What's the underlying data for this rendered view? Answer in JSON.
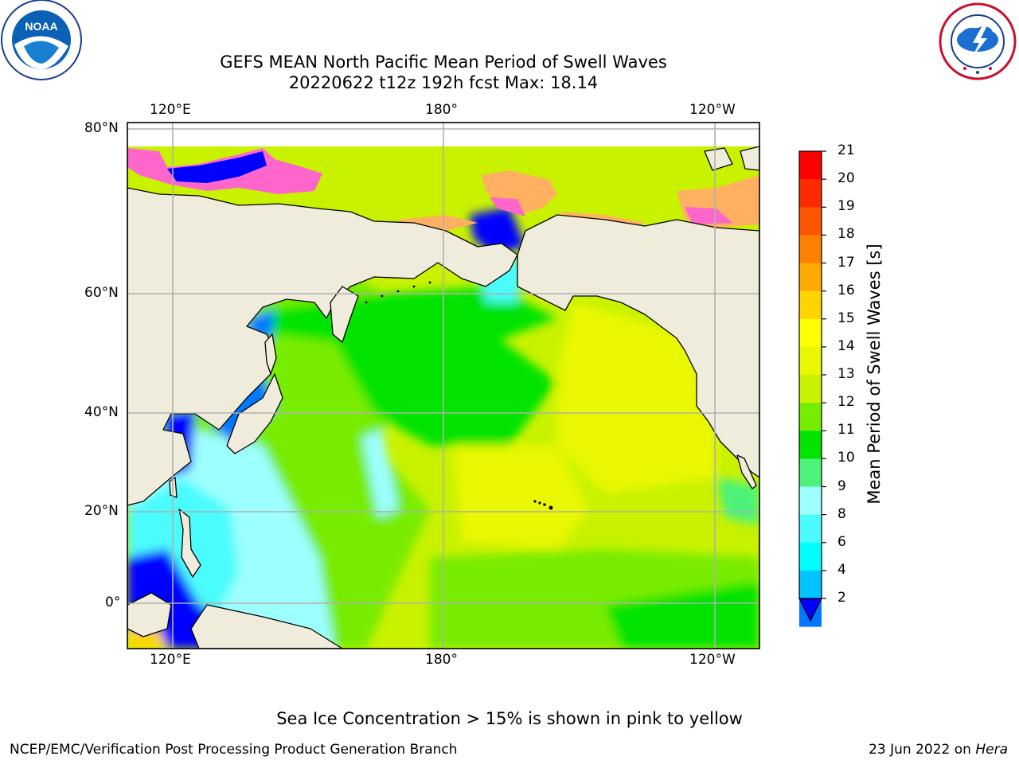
{
  "title": {
    "line1": "GEFS MEAN North Pacific Mean Period of Swell Waves",
    "line2": "20220622 t12z 192h fcst   Max: 18.14"
  },
  "map": {
    "lon_labels_top": [
      "120°E",
      "180°",
      "120°W"
    ],
    "lon_labels_bottom": [
      "120°E",
      "180°",
      "120°W"
    ],
    "lat_labels": [
      "80°N",
      "60°N",
      "40°N",
      "20°N",
      "0°"
    ],
    "land_color": "#efecdc",
    "grid_color": "#b0b0b0"
  },
  "colorbar": {
    "label": "Mean Period of Swell Waves [s]",
    "ticks": [
      "21",
      "20",
      "19",
      "18",
      "17",
      "16",
      "15",
      "14",
      "13",
      "12",
      "11",
      "10",
      "9",
      "8",
      "6",
      "4",
      "2"
    ],
    "colors": [
      "#fe0000",
      "#fe2b00",
      "#fe5500",
      "#fe8000",
      "#feaa00",
      "#ffd400",
      "#ffff00",
      "#e9f800",
      "#c8f200",
      "#78ec00",
      "#00e400",
      "#4cf27a",
      "#9effff",
      "#4cfcfc",
      "#00ffff",
      "#00c4ff",
      "#0077ff"
    ],
    "under_color": "#0000ff"
  },
  "note": "Sea Ice Concentration > 15% is shown in pink to yellow",
  "footer": {
    "left": "NCEP/EMC/Verification Post Processing Product Generation Branch",
    "right_date": "23 Jun 2022 on ",
    "right_host": "Hera"
  },
  "logos": {
    "left": "noaa-logo",
    "left_text": "NOAA",
    "right": "nws-logo"
  }
}
